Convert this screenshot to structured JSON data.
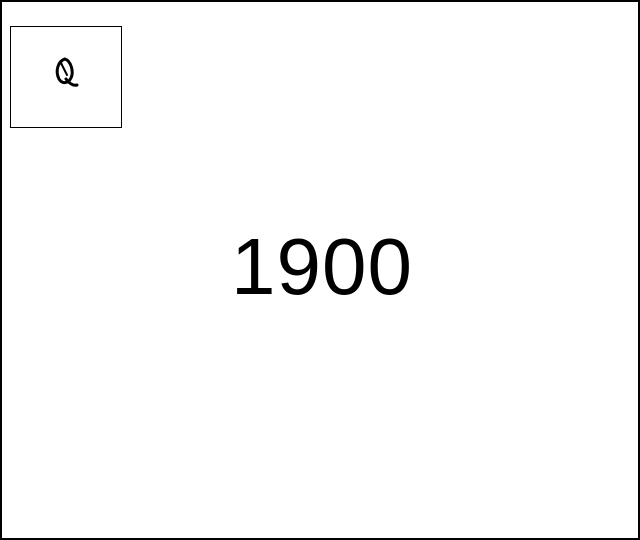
{
  "glyph": {
    "icon": "cursive-q-icon"
  },
  "main": {
    "year": "1900"
  }
}
